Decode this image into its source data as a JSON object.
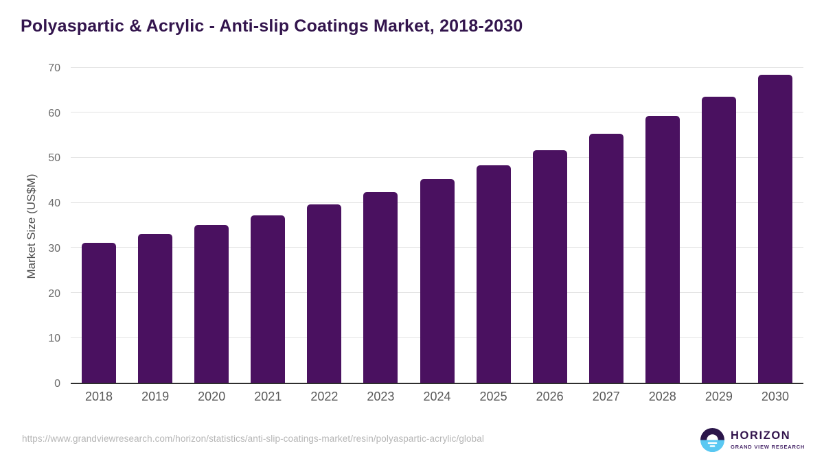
{
  "chart_data": {
    "type": "bar",
    "title": "Polyaspartic & Acrylic - Anti-slip Coatings Market, 2018-2030",
    "categories": [
      "2018",
      "2019",
      "2020",
      "2021",
      "2022",
      "2023",
      "2024",
      "2025",
      "2026",
      "2027",
      "2028",
      "2029",
      "2030"
    ],
    "values": [
      31.0,
      33.0,
      35.0,
      37.1,
      39.5,
      42.3,
      45.2,
      48.2,
      51.6,
      55.3,
      59.2,
      63.4,
      68.3
    ],
    "xlabel": "",
    "ylabel": "Market Size (US$M)",
    "ylim": [
      0,
      70
    ],
    "yticks": [
      0,
      10,
      20,
      30,
      40,
      50,
      60,
      70
    ],
    "grid": true,
    "legend": false
  },
  "footer": {
    "source_url": "https://www.grandviewresearch.com/horizon/statistics/anti-slip-coatings-market/resin/polyaspartic-acrylic/global",
    "logo": {
      "name": "HORIZON",
      "subtitle": "GRAND VIEW RESEARCH"
    }
  },
  "colors": {
    "title_text": "#33154d",
    "bar": "#4a1160",
    "axis_line": "#2e2e2e",
    "gridline": "#e3e3e3",
    "y_tick_label": "#6b6b6b",
    "x_tick_label": "#595959",
    "url_text": "#b5b5b5",
    "logo_purple": "#2b164a",
    "logo_blue": "#5ac8f2"
  }
}
